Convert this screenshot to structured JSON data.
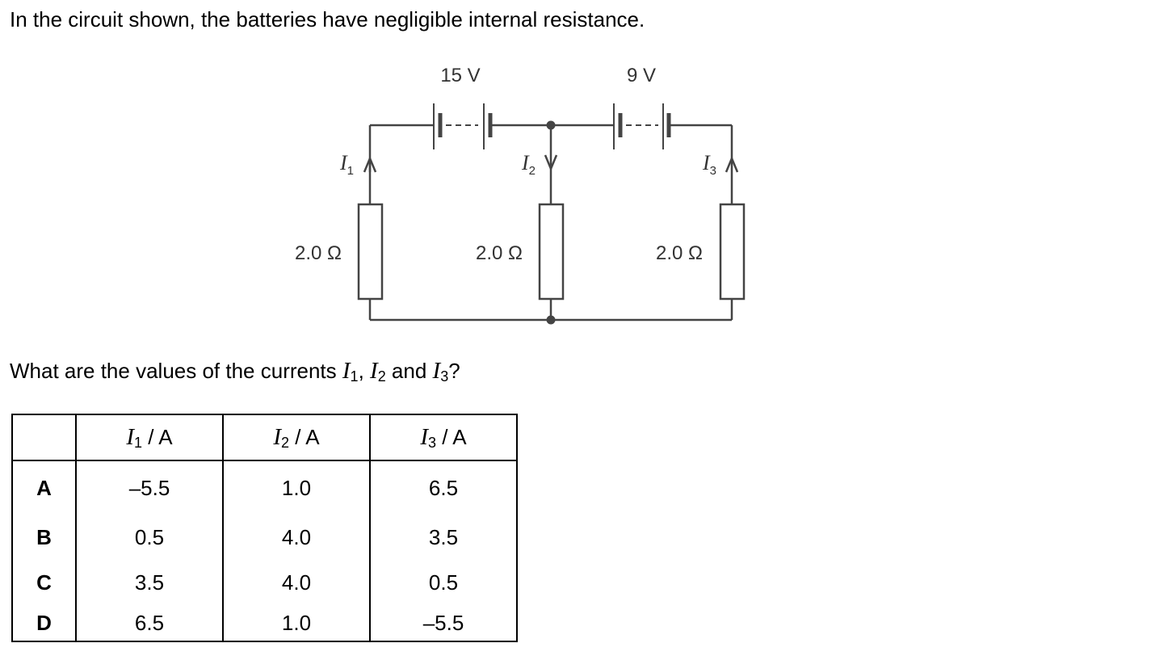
{
  "intro_text": "In the circuit shown, the batteries have negligible internal resistance.",
  "circuit": {
    "battery_left_label": "15 V",
    "battery_right_label": "9 V",
    "resistor_label": "2.0 Ω",
    "currents": [
      {
        "symbol": "I",
        "sub": "1",
        "direction": "up"
      },
      {
        "symbol": "I",
        "sub": "2",
        "direction": "down"
      },
      {
        "symbol": "I",
        "sub": "3",
        "direction": "up"
      }
    ]
  },
  "question": {
    "before": "What are the values of the currents ",
    "v1": "I",
    "s1": "1",
    "sep1": ", ",
    "v2": "I",
    "s2": "2",
    "sep2": " and ",
    "v3": "I",
    "s3": "3",
    "after": "?"
  },
  "table": {
    "headers": [
      {
        "var": "I",
        "sub": "1",
        "unit": " / A"
      },
      {
        "var": "I",
        "sub": "2",
        "unit": " / A"
      },
      {
        "var": "I",
        "sub": "3",
        "unit": " / A"
      }
    ],
    "rows": [
      {
        "label": "A",
        "values": [
          "–5.5",
          "1.0",
          "6.5"
        ]
      },
      {
        "label": "B",
        "values": [
          "0.5",
          "4.0",
          "3.5"
        ]
      },
      {
        "label": "C",
        "values": [
          "3.5",
          "4.0",
          "0.5"
        ]
      },
      {
        "label": "D",
        "values": [
          "6.5",
          "1.0",
          "–5.5"
        ]
      }
    ]
  }
}
